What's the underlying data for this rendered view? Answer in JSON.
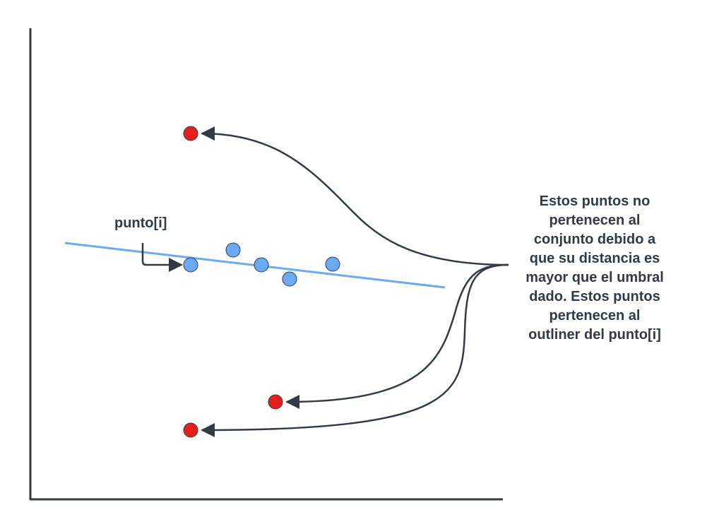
{
  "labels": {
    "point_label": "punto[i]",
    "callout_lines": [
      "Estos puntos no",
      "pertenecen al",
      "conjunto debido a",
      "que su distancia es",
      "mayor que el umbral",
      "dado. Estos puntos",
      "pertenecen al",
      "outliner del punto[i]"
    ]
  },
  "colors": {
    "inlier": "#6aaaf5",
    "outlier": "#e3211b",
    "fit_line": "#6aaaf5",
    "axis": "#333a45",
    "arrow": "#333a45"
  }
}
